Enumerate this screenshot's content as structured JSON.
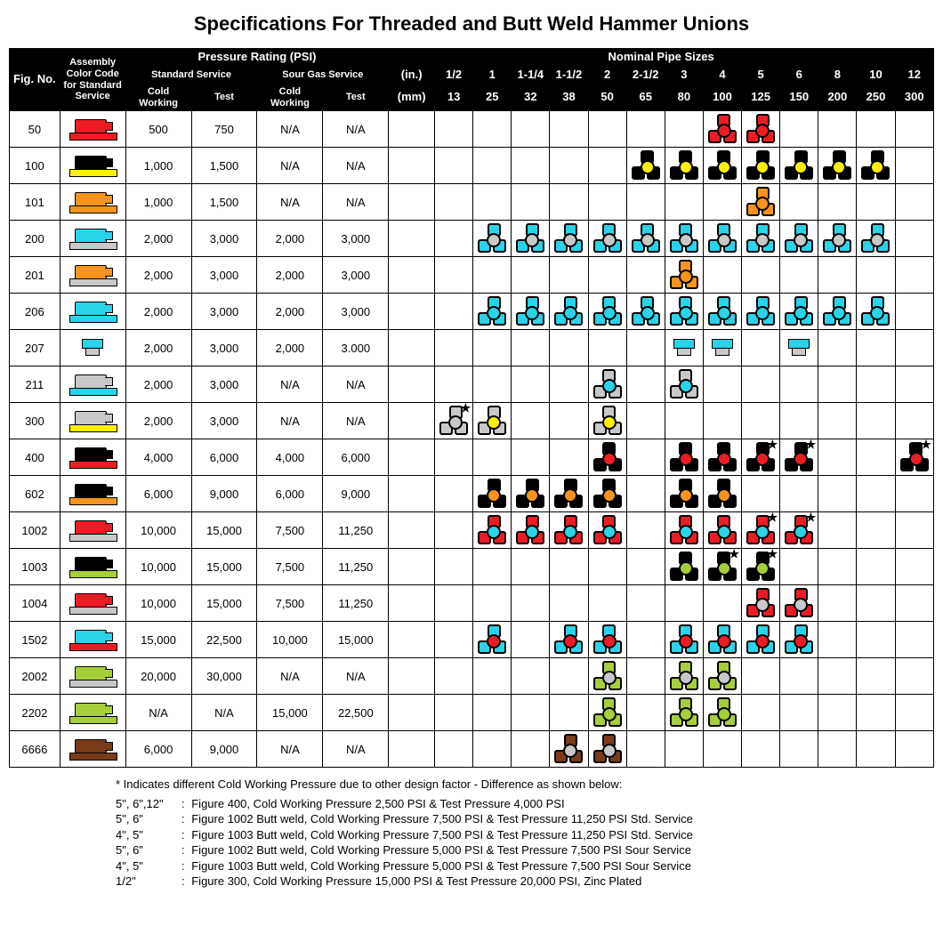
{
  "title": "Specifications For Threaded and Butt Weld Hammer Unions",
  "colors": {
    "red": "#ed1c24",
    "black": "#000000",
    "yellow": "#fff200",
    "orange": "#f7941d",
    "cyan": "#29d3e8",
    "gray": "#c8c8c8",
    "lime": "#a6ce39",
    "brown": "#7a3b1a",
    "darkorange": "#d87a1a",
    "white": "#ffffff"
  },
  "header": {
    "fig": "Fig.\nNo.",
    "assembly": "Assembly Color Code for Standard Service",
    "pressure_group": "Pressure Rating (PSI)",
    "std_service": "Standard Service",
    "sour_service": "Sour Gas Service",
    "cold": "Cold Working",
    "test": "Test",
    "nominal_group": "Nominal Pipe Sizes",
    "unit_in": "(in.)",
    "unit_mm": "(mm)",
    "sizes_in": [
      "1/2",
      "1",
      "1-1/4",
      "1-1/2",
      "2",
      "2-1/2",
      "3",
      "4",
      "5",
      "6",
      "8",
      "10",
      "12"
    ],
    "sizes_mm": [
      "13",
      "25",
      "32",
      "38",
      "50",
      "65",
      "80",
      "100",
      "125",
      "150",
      "200",
      "250",
      "300"
    ]
  },
  "rows": [
    {
      "fig": "50",
      "asm": {
        "body": "red",
        "stem": "red"
      },
      "pr": [
        "500",
        "750",
        "N/A",
        "N/A"
      ],
      "cells": [
        null,
        null,
        null,
        null,
        null,
        null,
        null,
        {
          "o": "red",
          "h": "red"
        },
        {
          "o": "red",
          "h": "red"
        },
        null,
        null,
        null,
        null
      ]
    },
    {
      "fig": "100",
      "asm": {
        "body": "black",
        "stem": "yellow"
      },
      "pr": [
        "1,000",
        "1,500",
        "N/A",
        "N/A"
      ],
      "cells": [
        null,
        null,
        null,
        null,
        null,
        {
          "o": "black",
          "h": "yellow"
        },
        {
          "o": "black",
          "h": "yellow"
        },
        {
          "o": "black",
          "h": "yellow"
        },
        {
          "o": "black",
          "h": "yellow"
        },
        {
          "o": "black",
          "h": "yellow"
        },
        {
          "o": "black",
          "h": "yellow"
        },
        {
          "o": "black",
          "h": "yellow"
        },
        null
      ]
    },
    {
      "fig": "101",
      "asm": {
        "body": "orange",
        "stem": "orange"
      },
      "pr": [
        "1,000",
        "1,500",
        "N/A",
        "N/A"
      ],
      "cells": [
        null,
        null,
        null,
        null,
        null,
        null,
        null,
        null,
        {
          "o": "orange",
          "h": "orange"
        },
        null,
        null,
        null,
        null
      ]
    },
    {
      "fig": "200",
      "asm": {
        "body": "cyan",
        "stem": "gray"
      },
      "pr": [
        "2,000",
        "3,000",
        "2,000",
        "3,000"
      ],
      "cells": [
        null,
        {
          "o": "cyan",
          "h": "gray"
        },
        {
          "o": "cyan",
          "h": "gray"
        },
        {
          "o": "cyan",
          "h": "gray"
        },
        {
          "o": "cyan",
          "h": "gray"
        },
        {
          "o": "cyan",
          "h": "gray"
        },
        {
          "o": "cyan",
          "h": "gray"
        },
        {
          "o": "cyan",
          "h": "gray"
        },
        {
          "o": "cyan",
          "h": "gray"
        },
        {
          "o": "cyan",
          "h": "gray"
        },
        {
          "o": "cyan",
          "h": "gray"
        },
        {
          "o": "cyan",
          "h": "gray"
        },
        null
      ]
    },
    {
      "fig": "201",
      "asm": {
        "body": "orange",
        "stem": "gray"
      },
      "pr": [
        "2,000",
        "3,000",
        "2,000",
        "3,000"
      ],
      "cells": [
        null,
        null,
        null,
        null,
        null,
        null,
        {
          "o": "orange",
          "h": "orange"
        },
        null,
        null,
        null,
        null,
        null,
        null
      ]
    },
    {
      "fig": "206",
      "asm": {
        "body": "cyan",
        "stem": "cyan"
      },
      "pr": [
        "2,000",
        "3,000",
        "2,000",
        "3,000"
      ],
      "cells": [
        null,
        {
          "o": "cyan",
          "h": "cyan"
        },
        {
          "o": "cyan",
          "h": "cyan"
        },
        {
          "o": "cyan",
          "h": "cyan"
        },
        {
          "o": "cyan",
          "h": "cyan"
        },
        {
          "o": "cyan",
          "h": "cyan"
        },
        {
          "o": "cyan",
          "h": "cyan"
        },
        {
          "o": "cyan",
          "h": "cyan"
        },
        {
          "o": "cyan",
          "h": "cyan"
        },
        {
          "o": "cyan",
          "h": "cyan"
        },
        {
          "o": "cyan",
          "h": "cyan"
        },
        {
          "o": "cyan",
          "h": "cyan"
        },
        null
      ]
    },
    {
      "fig": "207",
      "asm": {
        "body": "cyan",
        "stem": "gray",
        "style": "bar"
      },
      "pr": [
        "2,000",
        "3,000",
        "2,000",
        "3.000"
      ],
      "cells": [
        null,
        null,
        null,
        null,
        null,
        null,
        {
          "o": "cyan",
          "h": "gray",
          "style": "bar"
        },
        {
          "o": "cyan",
          "h": "gray",
          "style": "bar"
        },
        null,
        {
          "o": "cyan",
          "h": "gray",
          "style": "bar"
        },
        null,
        null,
        null
      ]
    },
    {
      "fig": "211",
      "asm": {
        "body": "gray",
        "stem": "cyan"
      },
      "pr": [
        "2,000",
        "3,000",
        "N/A",
        "N/A"
      ],
      "cells": [
        null,
        null,
        null,
        null,
        {
          "o": "gray",
          "h": "cyan"
        },
        null,
        {
          "o": "gray",
          "h": "cyan"
        },
        null,
        null,
        null,
        null,
        null,
        null
      ]
    },
    {
      "fig": "300",
      "asm": {
        "body": "gray",
        "stem": "yellow"
      },
      "pr": [
        "2,000",
        "3,000",
        "N/A",
        "N/A"
      ],
      "cells": [
        {
          "o": "gray",
          "h": "gray",
          "star": true
        },
        {
          "o": "gray",
          "h": "yellow"
        },
        null,
        null,
        {
          "o": "gray",
          "h": "yellow"
        },
        null,
        null,
        null,
        null,
        null,
        null,
        null,
        null
      ]
    },
    {
      "fig": "400",
      "asm": {
        "body": "black",
        "stem": "red"
      },
      "pr": [
        "4,000",
        "6,000",
        "4,000",
        "6,000"
      ],
      "cells": [
        null,
        null,
        null,
        null,
        {
          "o": "black",
          "h": "red"
        },
        null,
        {
          "o": "black",
          "h": "red"
        },
        {
          "o": "black",
          "h": "red"
        },
        {
          "o": "black",
          "h": "red",
          "star": true
        },
        {
          "o": "black",
          "h": "red",
          "star": true
        },
        null,
        null,
        {
          "o": "black",
          "h": "red",
          "star": true
        }
      ]
    },
    {
      "fig": "602",
      "asm": {
        "body": "black",
        "stem": "orange"
      },
      "pr": [
        "6,000",
        "9,000",
        "6,000",
        "9,000"
      ],
      "cells": [
        null,
        {
          "o": "black",
          "h": "orange"
        },
        {
          "o": "black",
          "h": "orange"
        },
        {
          "o": "black",
          "h": "orange"
        },
        {
          "o": "black",
          "h": "orange"
        },
        null,
        {
          "o": "black",
          "h": "orange"
        },
        {
          "o": "black",
          "h": "orange"
        },
        null,
        null,
        null,
        null,
        null
      ]
    },
    {
      "fig": "1002",
      "asm": {
        "body": "red",
        "stem": "gray"
      },
      "pr": [
        "10,000",
        "15,000",
        "7,500",
        "11,250"
      ],
      "cells": [
        null,
        {
          "o": "red",
          "h": "cyan"
        },
        {
          "o": "red",
          "h": "cyan"
        },
        {
          "o": "red",
          "h": "cyan"
        },
        {
          "o": "red",
          "h": "cyan"
        },
        null,
        {
          "o": "red",
          "h": "cyan"
        },
        {
          "o": "red",
          "h": "cyan"
        },
        {
          "o": "red",
          "h": "cyan",
          "star": true
        },
        {
          "o": "red",
          "h": "cyan",
          "star": true
        },
        null,
        null,
        null
      ]
    },
    {
      "fig": "1003",
      "asm": {
        "body": "black",
        "stem": "lime"
      },
      "pr": [
        "10,000",
        "15,000",
        "7,500",
        "11,250"
      ],
      "cells": [
        null,
        null,
        null,
        null,
        null,
        null,
        {
          "o": "black",
          "h": "lime"
        },
        {
          "o": "black",
          "h": "lime",
          "star": true
        },
        {
          "o": "black",
          "h": "lime",
          "star": true
        },
        null,
        null,
        null,
        null
      ]
    },
    {
      "fig": "1004",
      "asm": {
        "body": "red",
        "stem": "gray"
      },
      "pr": [
        "10,000",
        "15,000",
        "7,500",
        "11,250"
      ],
      "cells": [
        null,
        null,
        null,
        null,
        null,
        null,
        null,
        null,
        {
          "o": "red",
          "h": "gray"
        },
        {
          "o": "red",
          "h": "gray"
        },
        null,
        null,
        null
      ]
    },
    {
      "fig": "1502",
      "asm": {
        "body": "cyan",
        "stem": "red"
      },
      "pr": [
        "15,000",
        "22,500",
        "10,000",
        "15,000"
      ],
      "cells": [
        null,
        {
          "o": "cyan",
          "h": "red"
        },
        null,
        {
          "o": "cyan",
          "h": "red"
        },
        {
          "o": "cyan",
          "h": "red"
        },
        null,
        {
          "o": "cyan",
          "h": "red"
        },
        {
          "o": "cyan",
          "h": "red"
        },
        {
          "o": "cyan",
          "h": "red"
        },
        {
          "o": "cyan",
          "h": "red"
        },
        null,
        null,
        null
      ]
    },
    {
      "fig": "2002",
      "asm": {
        "body": "lime",
        "stem": "gray"
      },
      "pr": [
        "20,000",
        "30,000",
        "N/A",
        "N/A"
      ],
      "cells": [
        null,
        null,
        null,
        null,
        {
          "o": "lime",
          "h": "gray"
        },
        null,
        {
          "o": "lime",
          "h": "gray"
        },
        {
          "o": "lime",
          "h": "gray"
        },
        null,
        null,
        null,
        null,
        null
      ]
    },
    {
      "fig": "2202",
      "asm": {
        "body": "lime",
        "stem": "lime"
      },
      "pr": [
        "N/A",
        "N/A",
        "15,000",
        "22,500"
      ],
      "cells": [
        null,
        null,
        null,
        null,
        {
          "o": "lime",
          "h": "lime"
        },
        null,
        {
          "o": "lime",
          "h": "lime"
        },
        {
          "o": "lime",
          "h": "lime"
        },
        null,
        null,
        null,
        null,
        null
      ]
    },
    {
      "fig": "6666",
      "asm": {
        "body": "brown",
        "stem": "brown"
      },
      "pr": [
        "6,000",
        "9,000",
        "N/A",
        "N/A"
      ],
      "cells": [
        null,
        null,
        null,
        {
          "o": "brown",
          "h": "gray"
        },
        {
          "o": "brown",
          "h": "gray"
        },
        null,
        null,
        null,
        null,
        null,
        null,
        null,
        null
      ]
    }
  ],
  "footnotes": {
    "intro": "* Indicates different Cold Working Pressure due to other design factor - Difference as shown below:",
    "items": [
      {
        "size": "5\", 6\",12\"",
        "text": "Figure 400, Cold Working Pressure 2,500 PSI & Test Pressure 4,000 PSI"
      },
      {
        "size": "5\", 6\"",
        "text": "Figure 1002 Butt weld, Cold Working Pressure 7,500 PSI & Test Pressure 11,250 PSI Std. Service"
      },
      {
        "size": "4\", 5\"",
        "text": "Figure 1003 Butt weld, Cold Working Pressure 7,500 PSI & Test Pressure 11,250 PSI Std. Service"
      },
      {
        "size": "5\", 6\"",
        "text": "Figure 1002 Butt weld, Cold Working Pressure 5,000 PSI & Test Pressure 7,500 PSI Sour Service"
      },
      {
        "size": "4\", 5\"",
        "text": "Figure 1003 Butt weld, Cold Working Pressure 5,000 PSI & Test Pressure 7,500 PSI Sour Service"
      },
      {
        "size": "1/2\"",
        "text": "Figure 300, Cold Working Pressure 15,000 PSI & Test Pressure 20,000 PSI, Zinc Plated"
      }
    ]
  }
}
